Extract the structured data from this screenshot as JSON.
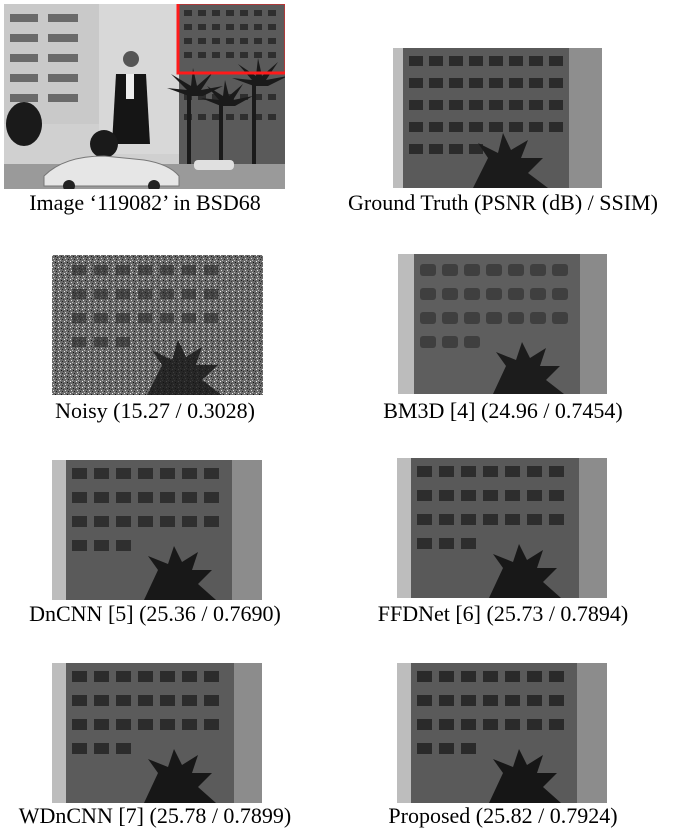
{
  "figure": {
    "panels": [
      {
        "id": "source",
        "caption": "Image ‘119082’ in BSD68"
      },
      {
        "id": "ground-truth",
        "caption": "Ground Truth (PSNR (dB) / SSIM)"
      },
      {
        "id": "noisy",
        "caption": "Noisy (15.27 / 0.3028)"
      },
      {
        "id": "bm3d",
        "caption": "BM3D [4] (24.96 / 0.7454)"
      },
      {
        "id": "dncnn",
        "caption": "DnCNN [5] (25.36 / 0.7690)"
      },
      {
        "id": "ffdnet",
        "caption": "FFDNet [6] (25.73 / 0.7894)"
      },
      {
        "id": "wdncnn",
        "caption": "WDnCNN [7] (25.78 / 0.7899)"
      },
      {
        "id": "proposed",
        "caption": "Proposed (25.82 / 0.7924)"
      }
    ],
    "colors": {
      "roi_box": "#ff1a1a",
      "building": "#4a4a4a",
      "window": "#2a2a2a",
      "sky": "#bdbdbd",
      "foliage": "#1e1e1e"
    }
  }
}
